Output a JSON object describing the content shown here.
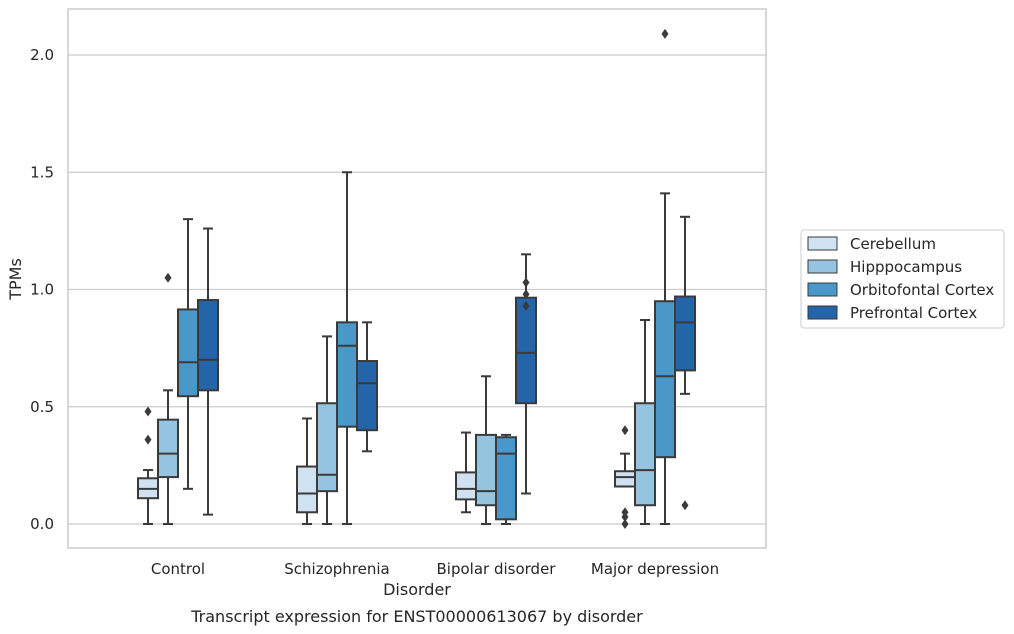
{
  "chart_data": {
    "type": "box",
    "title": "",
    "caption": "Transcript expression for ENST00000613067 by disorder",
    "xlabel": "Disorder",
    "ylabel": "TPMs",
    "ylim": [
      -0.1,
      2.2
    ],
    "yticks": [
      "0.0",
      "0.5",
      "1.0",
      "1.5",
      "2.0"
    ],
    "grid": "horizontal",
    "legend_position": "right",
    "categories": [
      "Control",
      "Schizophrenia",
      "Bipolar disorder",
      "Major depression"
    ],
    "series": [
      {
        "name": "Cerebellum",
        "color": "#d0e1f2",
        "boxes": [
          {
            "whislo": 0.0,
            "q1": 0.11,
            "med": 0.15,
            "q3": 0.195,
            "whishi": 0.23,
            "fliers": [
              0.36,
              0.48
            ]
          },
          {
            "whislo": 0.0,
            "q1": 0.05,
            "med": 0.13,
            "q3": 0.245,
            "whishi": 0.45,
            "fliers": []
          },
          {
            "whislo": 0.05,
            "q1": 0.105,
            "med": 0.15,
            "q3": 0.22,
            "whishi": 0.39,
            "fliers": []
          },
          {
            "whislo": 0.16,
            "q1": 0.16,
            "med": 0.2,
            "q3": 0.225,
            "whishi": 0.3,
            "fliers": [
              0.0,
              0.03,
              0.05,
              0.4
            ]
          }
        ]
      },
      {
        "name": "Hipppocampus",
        "color": "#94c4df",
        "boxes": [
          {
            "whislo": 0.0,
            "q1": 0.2,
            "med": 0.3,
            "q3": 0.445,
            "whishi": 0.57,
            "fliers": [
              1.05
            ]
          },
          {
            "whislo": 0.0,
            "q1": 0.14,
            "med": 0.21,
            "q3": 0.515,
            "whishi": 0.8,
            "fliers": []
          },
          {
            "whislo": 0.0,
            "q1": 0.08,
            "med": 0.14,
            "q3": 0.38,
            "whishi": 0.63,
            "fliers": []
          },
          {
            "whislo": 0.0,
            "q1": 0.08,
            "med": 0.23,
            "q3": 0.515,
            "whishi": 0.87,
            "fliers": []
          }
        ]
      },
      {
        "name": "Orbitofontal Cortex",
        "color": "#4a98c9",
        "boxes": [
          {
            "whislo": 0.15,
            "q1": 0.545,
            "med": 0.69,
            "q3": 0.915,
            "whishi": 1.3,
            "fliers": []
          },
          {
            "whislo": 0.0,
            "q1": 0.415,
            "med": 0.76,
            "q3": 0.86,
            "whishi": 1.5,
            "fliers": []
          },
          {
            "whislo": 0.0,
            "q1": 0.02,
            "med": 0.3,
            "q3": 0.37,
            "whishi": 0.38,
            "fliers": []
          },
          {
            "whislo": 0.0,
            "q1": 0.285,
            "med": 0.63,
            "q3": 0.95,
            "whishi": 1.41,
            "fliers": [
              2.09
            ]
          }
        ]
      },
      {
        "name": "Prefrontal Cortex",
        "color": "#2464a8",
        "boxes": [
          {
            "whislo": 0.04,
            "q1": 0.57,
            "med": 0.7,
            "q3": 0.955,
            "whishi": 1.26,
            "fliers": []
          },
          {
            "whislo": 0.31,
            "q1": 0.4,
            "med": 0.6,
            "q3": 0.695,
            "whishi": 0.86,
            "fliers": []
          },
          {
            "whislo": 0.13,
            "q1": 0.515,
            "med": 0.73,
            "q3": 0.965,
            "whishi": 1.15,
            "fliers": [
              0.93,
              0.98,
              1.03
            ]
          },
          {
            "whislo": 0.555,
            "q1": 0.655,
            "med": 0.86,
            "q3": 0.97,
            "whishi": 1.31,
            "fliers": [
              0.08
            ]
          }
        ]
      }
    ]
  }
}
